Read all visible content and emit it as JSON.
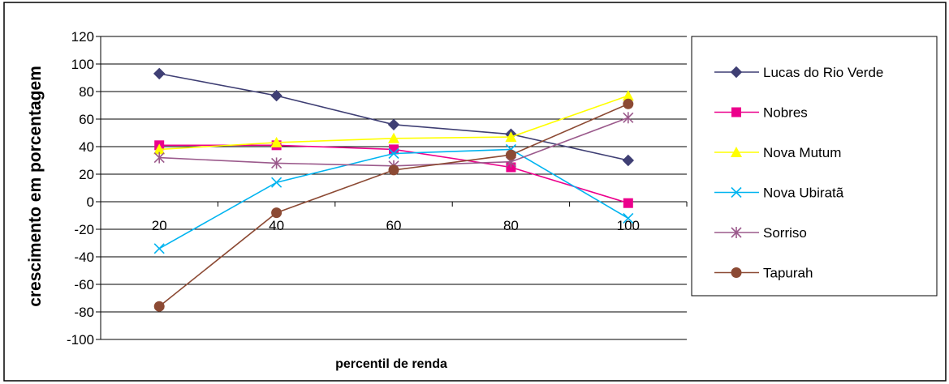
{
  "chart_data": {
    "type": "line",
    "title": "",
    "xlabel": "percentil de renda",
    "ylabel": "crescimento em porcentagem",
    "ylim": [
      -100,
      120
    ],
    "ytick_step": 20,
    "yticks": [
      "120",
      "100",
      "80",
      "60",
      "40",
      "20",
      "0",
      "-20",
      "-40",
      "-60",
      "-80",
      "-100"
    ],
    "categories": [
      "20",
      "40",
      "60",
      "80",
      "100"
    ],
    "grid": true,
    "legend_position": "right",
    "series": [
      {
        "name": "Lucas do Rio Verde",
        "color": "#3f3f74",
        "marker": "diamond",
        "values": [
          93,
          77,
          56,
          49,
          30
        ]
      },
      {
        "name": "Nobres",
        "color": "#ec008c",
        "marker": "square",
        "values": [
          41,
          41,
          38,
          25,
          -1
        ]
      },
      {
        "name": "Nova Mutum",
        "color": "#ffff00",
        "marker": "triangle",
        "values": [
          38,
          43,
          46,
          47,
          77
        ]
      },
      {
        "name": "Nova Ubiratã",
        "color": "#00b4f0",
        "marker": "x",
        "values": [
          -34,
          14,
          35,
          38,
          -12
        ]
      },
      {
        "name": "Sorriso",
        "color": "#9b5a8c",
        "marker": "star",
        "values": [
          32,
          28,
          26,
          29,
          61
        ]
      },
      {
        "name": "Tapurah",
        "color": "#8c4a34",
        "marker": "circle",
        "values": [
          -76,
          -8,
          23,
          34,
          71
        ]
      }
    ]
  }
}
